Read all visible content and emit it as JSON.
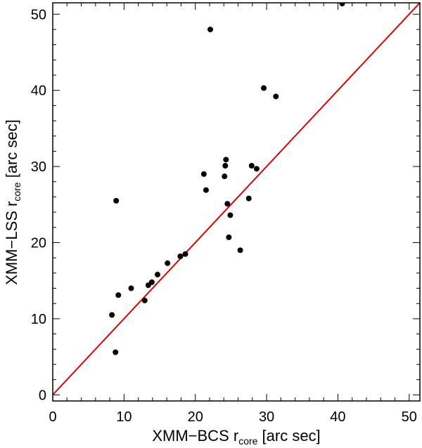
{
  "chart_data": {
    "type": "scatter",
    "xlabel": {
      "prefix": "XMM−BCS r",
      "sub": "core",
      "suffix": " [arc sec]"
    },
    "ylabel": {
      "prefix": "XMM−LSS r",
      "sub": "core",
      "suffix": " [arc sec]"
    },
    "xlim": [
      0,
      51.5
    ],
    "ylim": [
      -0.8,
      51.5
    ],
    "xticks": [
      "0",
      "10",
      "20",
      "30",
      "40",
      "50"
    ],
    "yticks": [
      "0",
      "10",
      "20",
      "30",
      "40",
      "50"
    ],
    "grid": false,
    "reference_line": {
      "type": "y = x",
      "color": "#e00000"
    },
    "marker_color": "#000000",
    "points": [
      {
        "x": 8.3,
        "y": 10.5
      },
      {
        "x": 8.8,
        "y": 5.6
      },
      {
        "x": 8.9,
        "y": 25.5
      },
      {
        "x": 9.2,
        "y": 13.1
      },
      {
        "x": 11.0,
        "y": 14.0
      },
      {
        "x": 12.9,
        "y": 12.4
      },
      {
        "x": 13.4,
        "y": 14.4
      },
      {
        "x": 13.9,
        "y": 14.8
      },
      {
        "x": 14.7,
        "y": 15.8
      },
      {
        "x": 16.1,
        "y": 17.3
      },
      {
        "x": 17.9,
        "y": 18.2
      },
      {
        "x": 18.6,
        "y": 18.5
      },
      {
        "x": 21.2,
        "y": 29.0
      },
      {
        "x": 21.5,
        "y": 26.9
      },
      {
        "x": 22.1,
        "y": 48.0
      },
      {
        "x": 24.1,
        "y": 28.7
      },
      {
        "x": 24.2,
        "y": 30.1
      },
      {
        "x": 24.3,
        "y": 30.9
      },
      {
        "x": 24.5,
        "y": 25.1
      },
      {
        "x": 24.7,
        "y": 20.7
      },
      {
        "x": 24.9,
        "y": 23.6
      },
      {
        "x": 26.3,
        "y": 19.0
      },
      {
        "x": 27.5,
        "y": 25.8
      },
      {
        "x": 27.9,
        "y": 30.1
      },
      {
        "x": 28.6,
        "y": 29.7
      },
      {
        "x": 29.6,
        "y": 40.3
      },
      {
        "x": 31.3,
        "y": 39.2
      },
      {
        "x": 40.6,
        "y": 51.4
      }
    ]
  }
}
